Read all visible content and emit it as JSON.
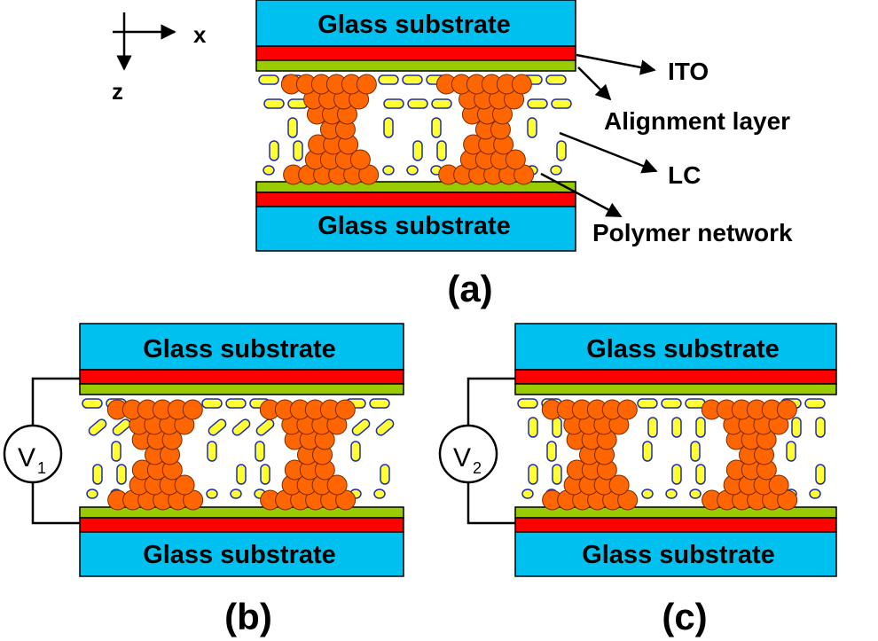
{
  "colors": {
    "glass": "#00c0f0",
    "ito": "#ff0000",
    "alignment": "#99cc00",
    "polymer": "#ff6600",
    "lc_fill": "#ffff33",
    "lc_stroke": "#1f2ea8",
    "line": "#000000"
  },
  "axes": {
    "x_label": "x",
    "z_label": "z"
  },
  "substrate_label": "Glass substrate",
  "callouts": {
    "ito": "ITO",
    "alignment": "Alignment layer",
    "lc": "LC",
    "polymer": "Polymer network"
  },
  "panels": {
    "a": {
      "label": "(a)"
    },
    "b": {
      "label": "(b)",
      "voltage": "V",
      "voltage_sub": "1"
    },
    "c": {
      "label": "(c)",
      "voltage": "V",
      "voltage_sub": "2"
    }
  }
}
